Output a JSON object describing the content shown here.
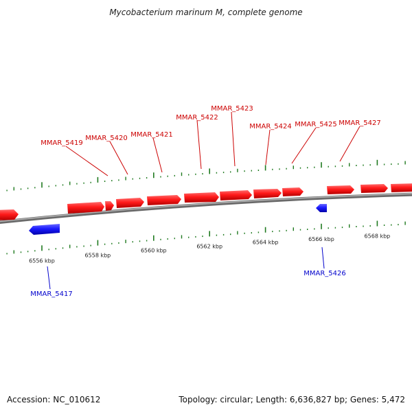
{
  "title": "Mycobacterium marinum M, complete genome",
  "footer": {
    "accession": "Accession: NC_010612",
    "summary": "Topology: circular; Length: 6,636,827 bp; Genes: 5,472"
  },
  "colors": {
    "forward_gene": "#ff0000",
    "reverse_gene": "#0000ff",
    "forward_label": "#cc0000",
    "reverse_label": "#0000cc",
    "backbone": "#808080",
    "ticks": "#1f7a1f"
  },
  "scale": {
    "unit": "kbp",
    "labels": [
      {
        "kbp": 6556,
        "text": "6556 kbp"
      },
      {
        "kbp": 6558,
        "text": "6558 kbp"
      },
      {
        "kbp": 6560,
        "text": "6560 kbp"
      },
      {
        "kbp": 6562,
        "text": "6562 kbp"
      },
      {
        "kbp": 6564,
        "text": "6564 kbp"
      },
      {
        "kbp": 6566,
        "text": "6566 kbp"
      },
      {
        "kbp": 6568,
        "text": "6568 kbp"
      }
    ]
  },
  "genes": [
    {
      "label": "MMAR_5419",
      "strand": "+"
    },
    {
      "label": "MMAR_5420",
      "strand": "+"
    },
    {
      "label": "MMAR_5421",
      "strand": "+"
    },
    {
      "label": "MMAR_5422",
      "strand": "+"
    },
    {
      "label": "MMAR_5423",
      "strand": "+"
    },
    {
      "label": "MMAR_5424",
      "strand": "+"
    },
    {
      "label": "MMAR_5425",
      "strand": "+"
    },
    {
      "label": "MMAR_5427",
      "strand": "+"
    },
    {
      "label": "MMAR_5417",
      "strand": "-"
    },
    {
      "label": "MMAR_5426",
      "strand": "-"
    }
  ]
}
